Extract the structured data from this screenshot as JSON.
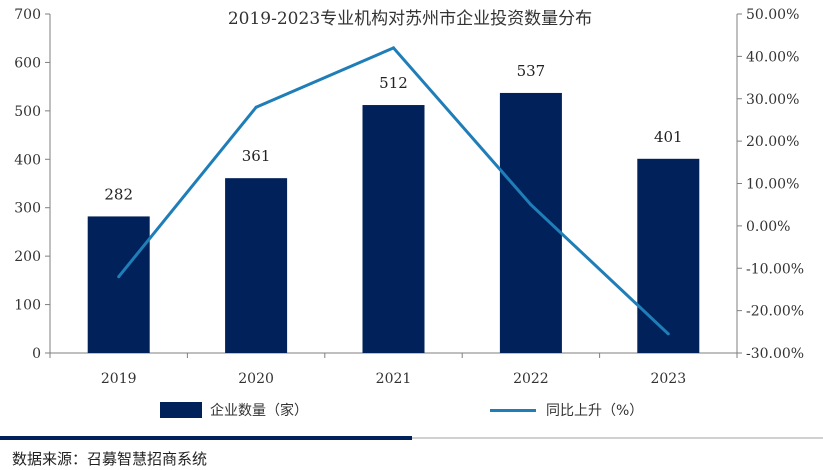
{
  "colors": {
    "bar": "#002159",
    "line": "#1f7eb8",
    "axis": "#7f7f7f",
    "footer_dark": "#002159",
    "footer_light": "#d0d0d0"
  },
  "chart_data": {
    "type": "bar",
    "title": "2019-2023专业机构对苏州市企业投资数量分布",
    "categories": [
      "2019",
      "2020",
      "2021",
      "2022",
      "2023"
    ],
    "series": [
      {
        "name": "企业数量（家）",
        "type": "bar",
        "axis": "left",
        "values": [
          282,
          361,
          512,
          537,
          401
        ],
        "labels": [
          "282",
          "361",
          "512",
          "537",
          "401"
        ]
      },
      {
        "name": "同比上升（%）",
        "type": "line",
        "axis": "right",
        "values": [
          -12.0,
          28.0,
          42.0,
          5.0,
          -25.5
        ]
      }
    ],
    "y_left": {
      "min": 0,
      "max": 700,
      "ticks": [
        "0",
        "100",
        "200",
        "300",
        "400",
        "500",
        "600",
        "700"
      ]
    },
    "y_right": {
      "min": -30,
      "max": 50,
      "ticks": [
        "-30.00%",
        "-20.00%",
        "-10.00%",
        "0.00%",
        "10.00%",
        "20.00%",
        "30.00%",
        "40.00%",
        "50.00%"
      ]
    },
    "grid": false,
    "legend_position": "bottom"
  },
  "legend": {
    "bar_label": "企业数量（家）",
    "line_label": "同比上升（%）"
  },
  "source": "数据来源：召募智慧招商系统"
}
